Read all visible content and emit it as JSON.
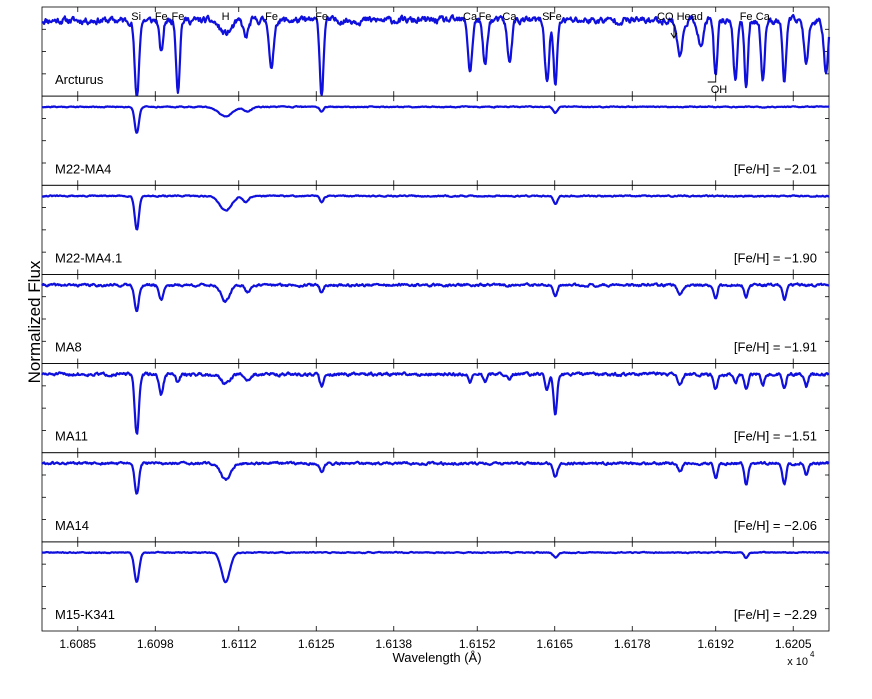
{
  "figure": {
    "ylabel": "Normalized Flux",
    "xlabel": "Wavelength (Å)",
    "x_exponent_base": "x 10",
    "x_exponent_power": "4"
  },
  "chart_data": {
    "type": "line",
    "panel_count": 7,
    "shared_x": {
      "label": "Wavelength (Å)",
      "range": [
        16079,
        16211
      ],
      "ticks": [
        16085,
        16098,
        16112,
        16125,
        16138,
        16152,
        16165,
        16178,
        16192,
        16205
      ],
      "tick_labels": [
        "1.6085",
        "1.6098",
        "1.6112",
        "1.6125",
        "1.6138",
        "1.6152",
        "1.6165",
        "1.6178",
        "1.6192",
        "1.6205"
      ],
      "multiplier": "x 10^4"
    },
    "ylabel": "Normalized Flux",
    "line_color": "#1010dd",
    "line_annotations": [
      {
        "label": "Si",
        "wavelength": 16094.8
      },
      {
        "label": "Fe",
        "wavelength": 16099.0
      },
      {
        "label": "Fe",
        "wavelength": 16101.8
      },
      {
        "label": "H",
        "wavelength": 16109.8
      },
      {
        "label": "Fe",
        "wavelength": 16117.5
      },
      {
        "label": "Fe",
        "wavelength": 16125.9
      },
      {
        "label": "Ca",
        "wavelength": 16150.8
      },
      {
        "label": "Fe",
        "wavelength": 16153.3
      },
      {
        "label": "Ca",
        "wavelength": 16157.4
      },
      {
        "label": "Si",
        "wavelength": 16163.7
      },
      {
        "label": "Fe",
        "wavelength": 16165.1
      },
      {
        "label": "CO Head",
        "wavelength": 16186.0
      },
      {
        "label": "Fe",
        "wavelength": 16197.1
      },
      {
        "label": "Ca",
        "wavelength": 16199.9
      },
      {
        "label": "OH",
        "wavelength": 16192.0
      }
    ],
    "series": [
      {
        "name": "Arcturus",
        "metallicity_label": "",
        "continuum": 0.93,
        "ylim": [
          0.25,
          1.05
        ],
        "lines": [
          [
            16094.9,
            0.72,
            0.35
          ],
          [
            16099.0,
            0.3,
            0.3
          ],
          [
            16101.8,
            0.62,
            0.3
          ],
          [
            16109.8,
            0.12,
            1.0
          ],
          [
            16113.2,
            0.15,
            0.4
          ],
          [
            16117.5,
            0.45,
            0.35
          ],
          [
            16125.9,
            0.68,
            0.3
          ],
          [
            16150.8,
            0.45,
            0.35
          ],
          [
            16153.3,
            0.4,
            0.35
          ],
          [
            16157.4,
            0.38,
            0.35
          ],
          [
            16163.7,
            0.55,
            0.35
          ],
          [
            16165.1,
            0.6,
            0.3
          ],
          [
            16186.0,
            0.32,
            0.45
          ],
          [
            16189.5,
            0.25,
            0.4
          ],
          [
            16192.0,
            0.5,
            0.3
          ],
          [
            16195.3,
            0.55,
            0.3
          ],
          [
            16197.1,
            0.6,
            0.3
          ],
          [
            16199.9,
            0.55,
            0.3
          ],
          [
            16203.5,
            0.55,
            0.3
          ],
          [
            16207.2,
            0.4,
            0.35
          ],
          [
            16210.5,
            0.45,
            0.35
          ]
        ],
        "noise": 0.06,
        "seed": 11
      },
      {
        "name": "M22-MA4",
        "metallicity_label": "[Fe/H] = −2.01",
        "continuum": 0.96,
        "ylim": [
          0.3,
          1.05
        ],
        "lines": [
          [
            16094.9,
            0.22,
            0.35
          ],
          [
            16109.8,
            0.08,
            1.2
          ],
          [
            16113.5,
            0.04,
            0.6
          ],
          [
            16125.9,
            0.04,
            0.3
          ],
          [
            16165.1,
            0.05,
            0.35
          ]
        ],
        "noise": 0.008,
        "seed": 21
      },
      {
        "name": "M22-MA4.1",
        "metallicity_label": "[Fe/H] = −1.90",
        "continuum": 0.96,
        "ylim": [
          0.3,
          1.05
        ],
        "lines": [
          [
            16094.9,
            0.28,
            0.35
          ],
          [
            16109.8,
            0.12,
            1.0
          ],
          [
            16113.2,
            0.05,
            0.5
          ],
          [
            16125.9,
            0.05,
            0.3
          ],
          [
            16165.1,
            0.07,
            0.35
          ]
        ],
        "noise": 0.01,
        "seed": 31
      },
      {
        "name": "MA8",
        "metallicity_label": "[Fe/H] = −1.91",
        "continuum": 0.96,
        "ylim": [
          0.3,
          1.05
        ],
        "lines": [
          [
            16094.9,
            0.22,
            0.35
          ],
          [
            16099.0,
            0.12,
            0.35
          ],
          [
            16109.8,
            0.14,
            0.7
          ],
          [
            16113.5,
            0.06,
            0.4
          ],
          [
            16125.9,
            0.06,
            0.3
          ],
          [
            16165.1,
            0.1,
            0.35
          ],
          [
            16186.0,
            0.08,
            0.4
          ],
          [
            16192.0,
            0.1,
            0.3
          ],
          [
            16197.1,
            0.1,
            0.3
          ],
          [
            16203.5,
            0.12,
            0.3
          ]
        ],
        "noise": 0.02,
        "seed": 41
      },
      {
        "name": "MA11",
        "metallicity_label": "[Fe/H] = −1.51",
        "continuum": 0.96,
        "ylim": [
          0.3,
          1.05
        ],
        "lines": [
          [
            16094.9,
            0.5,
            0.35
          ],
          [
            16099.0,
            0.17,
            0.35
          ],
          [
            16101.8,
            0.07,
            0.3
          ],
          [
            16109.8,
            0.08,
            0.7
          ],
          [
            16113.5,
            0.05,
            0.5
          ],
          [
            16125.9,
            0.1,
            0.3
          ],
          [
            16150.8,
            0.06,
            0.3
          ],
          [
            16153.3,
            0.06,
            0.3
          ],
          [
            16157.4,
            0.06,
            0.3
          ],
          [
            16163.7,
            0.12,
            0.35
          ],
          [
            16165.1,
            0.35,
            0.3
          ],
          [
            16186.0,
            0.08,
            0.4
          ],
          [
            16192.0,
            0.12,
            0.3
          ],
          [
            16195.3,
            0.08,
            0.3
          ],
          [
            16197.1,
            0.12,
            0.3
          ],
          [
            16199.9,
            0.1,
            0.3
          ],
          [
            16203.5,
            0.12,
            0.3
          ],
          [
            16207.2,
            0.1,
            0.3
          ]
        ],
        "noise": 0.025,
        "seed": 51
      },
      {
        "name": "MA14",
        "metallicity_label": "[Fe/H] = −2.06",
        "continuum": 0.96,
        "ylim": [
          0.3,
          1.05
        ],
        "lines": [
          [
            16094.9,
            0.25,
            0.35
          ],
          [
            16109.8,
            0.14,
            0.8
          ],
          [
            16125.9,
            0.08,
            0.3
          ],
          [
            16165.1,
            0.12,
            0.35
          ],
          [
            16186.0,
            0.06,
            0.4
          ],
          [
            16192.0,
            0.12,
            0.3
          ],
          [
            16197.1,
            0.18,
            0.3
          ],
          [
            16203.5,
            0.18,
            0.3
          ],
          [
            16207.2,
            0.1,
            0.3
          ]
        ],
        "noise": 0.02,
        "seed": 61
      },
      {
        "name": "M15-K341",
        "metallicity_label": "[Fe/H] = −2.29",
        "continuum": 0.96,
        "ylim": [
          0.3,
          1.05
        ],
        "lines": [
          [
            16094.9,
            0.25,
            0.4
          ],
          [
            16109.8,
            0.25,
            0.7
          ],
          [
            16165.1,
            0.04,
            0.4
          ],
          [
            16197.1,
            0.05,
            0.3
          ]
        ],
        "noise": 0.008,
        "seed": 71
      }
    ]
  }
}
